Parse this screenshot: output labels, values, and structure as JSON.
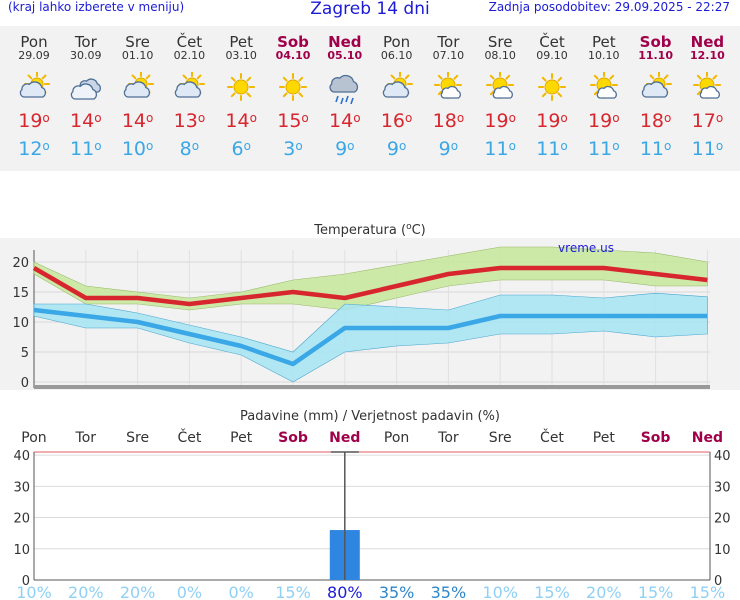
{
  "header": {
    "menu_hint": "(kraj lahko izberete v meniju)",
    "title": "Zagreb 14 dni",
    "updated": "Zadnja posodobitev: 29.09.2025 - 22:27"
  },
  "days": [
    {
      "name": "Pon",
      "date": "29.09",
      "weekend": false,
      "icon": "partly-cloudy-icon",
      "max": "19",
      "min": "12"
    },
    {
      "name": "Tor",
      "date": "30.09",
      "weekend": false,
      "icon": "cloudy-icon",
      "max": "14",
      "min": "11"
    },
    {
      "name": "Sre",
      "date": "01.10",
      "weekend": false,
      "icon": "partly-cloudy-icon",
      "max": "14",
      "min": "10"
    },
    {
      "name": "Čet",
      "date": "02.10",
      "weekend": false,
      "icon": "partly-cloudy-icon",
      "max": "13",
      "min": "8"
    },
    {
      "name": "Pet",
      "date": "03.10",
      "weekend": false,
      "icon": "sun-icon",
      "max": "14",
      "min": "6"
    },
    {
      "name": "Sob",
      "date": "04.10",
      "weekend": true,
      "icon": "sun-icon",
      "max": "15",
      "min": "3"
    },
    {
      "name": "Ned",
      "date": "05.10",
      "weekend": true,
      "icon": "rain-icon",
      "max": "14",
      "min": "9"
    },
    {
      "name": "Pon",
      "date": "06.10",
      "weekend": false,
      "icon": "partly-cloudy-icon",
      "max": "16",
      "min": "9"
    },
    {
      "name": "Tor",
      "date": "07.10",
      "weekend": false,
      "icon": "sun-cloud-icon",
      "max": "18",
      "min": "9"
    },
    {
      "name": "Sre",
      "date": "08.10",
      "weekend": false,
      "icon": "sun-cloud-icon",
      "max": "19",
      "min": "11"
    },
    {
      "name": "Čet",
      "date": "09.10",
      "weekend": false,
      "icon": "sun-icon",
      "max": "19",
      "min": "11"
    },
    {
      "name": "Pet",
      "date": "10.10",
      "weekend": false,
      "icon": "sun-cloud-icon",
      "max": "19",
      "min": "11"
    },
    {
      "name": "Sob",
      "date": "11.10",
      "weekend": true,
      "icon": "partly-cloudy-icon",
      "max": "18",
      "min": "11"
    },
    {
      "name": "Ned",
      "date": "12.10",
      "weekend": true,
      "icon": "sun-cloud-icon",
      "max": "17",
      "min": "11"
    }
  ],
  "degree_symbol": "o",
  "colors": {
    "max": "#d8262f",
    "min": "#3aa7e6",
    "weekend": "#a0004a",
    "precip_bar": "#2f86e0",
    "prob_text": "#8fd0f5",
    "prob_high": "#1b1bd6",
    "prob_mid": "#2f86c9"
  },
  "chart_data": [
    {
      "type": "line",
      "title": "Temperatura (",
      "title_sup": "o",
      "title_unit": "C)",
      "watermark": "vreme.us",
      "ylim": [
        -1,
        22
      ],
      "yticks": [
        0,
        5,
        10,
        15,
        20
      ],
      "x": [
        "29.09",
        "30.09",
        "01.10",
        "02.10",
        "03.10",
        "04.10",
        "05.10",
        "06.10",
        "07.10",
        "08.10",
        "09.10",
        "10.10",
        "11.10",
        "12.10"
      ],
      "series": [
        {
          "values": [
            19,
            14,
            14,
            13,
            14,
            15,
            14,
            16,
            18,
            19,
            19,
            19,
            18,
            17
          ],
          "color": "#d8262f"
        },
        {
          "values": [
            12,
            11,
            10,
            8,
            6,
            3,
            9,
            9,
            9,
            11,
            11,
            11,
            11,
            11
          ],
          "color": "#3aa7e6"
        }
      ],
      "max_band": {
        "low": [
          18,
          13,
          13,
          12,
          13,
          13,
          12,
          14,
          16,
          17,
          17,
          17,
          16,
          16
        ],
        "high": [
          20,
          16,
          15,
          14,
          15,
          17,
          18,
          19.5,
          21,
          22.5,
          22.5,
          22,
          21.5,
          20
        ],
        "color": "#c6e89a"
      },
      "min_band": {
        "low": [
          11,
          9,
          9,
          6.5,
          4.5,
          0,
          5,
          6,
          6.5,
          8,
          8,
          8.5,
          7.5,
          8
        ],
        "high": [
          13,
          13,
          11.5,
          9.5,
          7.5,
          5,
          13,
          12.5,
          12,
          14.5,
          14.5,
          14,
          14.8,
          14.2
        ],
        "color": "#a6e4f3"
      }
    },
    {
      "type": "bar",
      "title": "Padavine (mm) / Verjetnost padavin (%)",
      "categories": [
        "Pon",
        "Tor",
        "Sre",
        "Čet",
        "Pet",
        "Sob",
        "Ned",
        "Pon",
        "Tor",
        "Sre",
        "Čet",
        "Pet",
        "Sob",
        "Ned"
      ],
      "weekend": [
        false,
        false,
        false,
        false,
        false,
        true,
        true,
        false,
        false,
        false,
        false,
        false,
        true,
        true
      ],
      "values": [
        0,
        0,
        0,
        0,
        0,
        0,
        16,
        0,
        0,
        0,
        0,
        0,
        0,
        0
      ],
      "range_high": [
        0,
        0,
        0,
        0,
        0,
        0,
        41,
        0,
        0,
        0,
        0,
        0,
        0,
        0
      ],
      "ylim": [
        0,
        41
      ],
      "yticks": [
        0,
        10,
        20,
        30,
        40
      ],
      "probabilities": [
        "10%",
        "20%",
        "20%",
        "0%",
        "0%",
        "15%",
        "80%",
        "35%",
        "35%",
        "10%",
        "15%",
        "20%",
        "15%",
        "15%"
      ]
    }
  ]
}
